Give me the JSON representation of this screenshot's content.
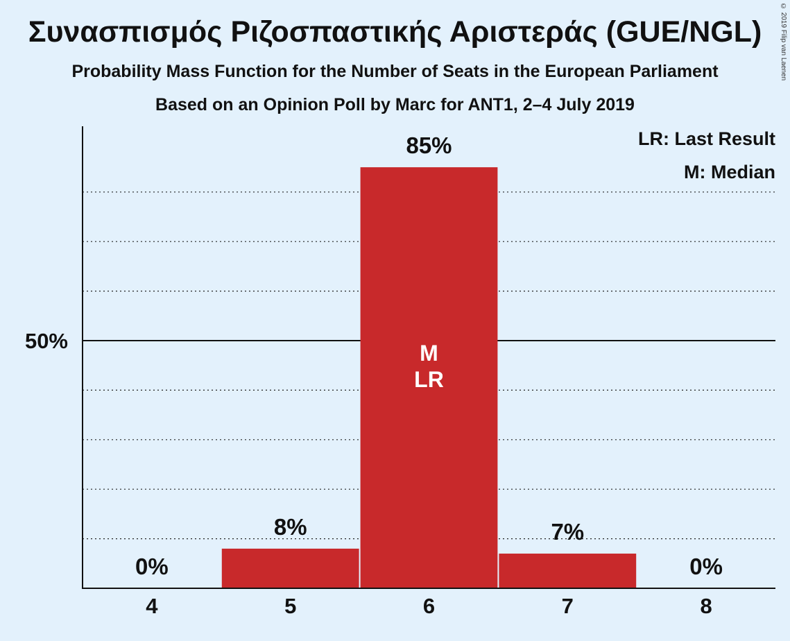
{
  "header": {
    "title": "Συνασπισμός Ριζοσπαστικής Αριστεράς (GUE/NGL)",
    "subtitle_1": "Probability Mass Function for the Number of Seats in the European Parliament",
    "subtitle_2": "Based on an Opinion Poll by Marc for ANT1, 2–4 July 2019",
    "copyright": "© 2019 Filip van Laenen"
  },
  "chart_data": {
    "type": "bar",
    "title": "Συνασπισμός Ριζοσπαστικής Αριστεράς (GUE/NGL)",
    "xlabel": "",
    "ylabel": "",
    "categories": [
      "4",
      "5",
      "6",
      "7",
      "8"
    ],
    "values": [
      0,
      8,
      85,
      7,
      0
    ],
    "value_labels": [
      "0%",
      "8%",
      "85%",
      "7%",
      "0%"
    ],
    "ylim": [
      0,
      92
    ],
    "y_ticks": [
      {
        "value": 50,
        "label": "50%"
      }
    ],
    "grid_values": [
      10,
      20,
      30,
      40,
      60,
      70,
      80
    ],
    "median_category": "6",
    "last_result_category": "6",
    "bar_markers": [
      "M",
      "LR"
    ],
    "legend": [
      "LR: Last Result",
      "M: Median"
    ],
    "legend_position": "top-right",
    "colors": {
      "bar": "#c8292b",
      "background": "#e3f1fc",
      "bar_marker_text": "#ffffff"
    }
  }
}
